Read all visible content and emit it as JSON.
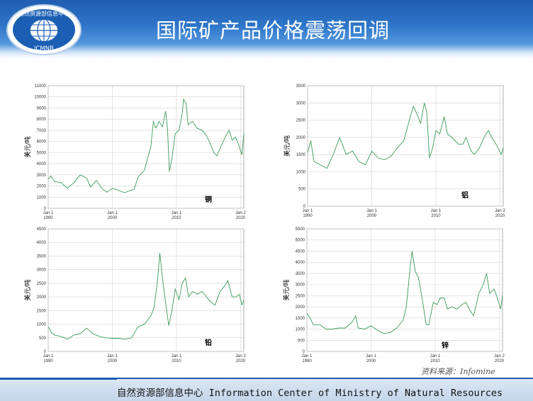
{
  "header": {
    "title": "国际矿产品价格震荡回调",
    "logo": {
      "top_text": "自然资源部信息中心",
      "bottom_text": "ICMNR"
    }
  },
  "footer": {
    "text": "自然资源部信息中心  Information Center of Ministry of Natural Resources"
  },
  "source_note": "资料来源：Infomine",
  "colors": {
    "line": "#3a9a5c",
    "grid": "#d3d3d3",
    "header_blue": "#1f5db0"
  },
  "chart_data": [
    {
      "type": "line",
      "title": "铜",
      "ylabel": "美元/吨",
      "xlabel": "",
      "ylim": [
        0,
        11000
      ],
      "yticks": [
        0,
        1000,
        2000,
        3000,
        4000,
        5000,
        6000,
        7000,
        8000,
        9000,
        10000,
        11000
      ],
      "xlim": [
        1990,
        2020.5
      ],
      "xticks": [
        {
          "x": 1990,
          "label1": "Jan 1",
          "label2": "1990"
        },
        {
          "x": 2000,
          "label1": "Jan 1",
          "label2": "2000"
        },
        {
          "x": 2010,
          "label1": "Jan 1",
          "label2": "2010"
        },
        {
          "x": 2020,
          "label1": "Jan 2",
          "label2": "2020"
        }
      ],
      "series": [
        {
          "points": [
            [
              1990,
              2600
            ],
            [
              1990.4,
              2900
            ],
            [
              1991,
              2400
            ],
            [
              1992,
              2300
            ],
            [
              1993,
              1800
            ],
            [
              1994,
              2300
            ],
            [
              1995,
              3000
            ],
            [
              1996,
              2700
            ],
            [
              1996.6,
              1900
            ],
            [
              1997.5,
              2500
            ],
            [
              1998.5,
              1700
            ],
            [
              1999.2,
              1450
            ],
            [
              2000,
              1800
            ],
            [
              2001,
              1600
            ],
            [
              2001.9,
              1400
            ],
            [
              2002.8,
              1600
            ],
            [
              2003.4,
              1700
            ],
            [
              2004,
              2800
            ],
            [
              2005,
              3400
            ],
            [
              2005.5,
              4500
            ],
            [
              2006,
              5500
            ],
            [
              2006.4,
              7800
            ],
            [
              2006.8,
              7200
            ],
            [
              2007.3,
              7800
            ],
            [
              2007.8,
              7300
            ],
            [
              2008.3,
              8700
            ],
            [
              2008.6,
              7200
            ],
            [
              2008.9,
              3300
            ],
            [
              2009.3,
              4500
            ],
            [
              2009.8,
              6700
            ],
            [
              2010.4,
              7000
            ],
            [
              2010.9,
              8500
            ],
            [
              2011.1,
              9800
            ],
            [
              2011.5,
              9400
            ],
            [
              2011.8,
              7500
            ],
            [
              2012.5,
              7800
            ],
            [
              2013.2,
              7200
            ],
            [
              2014,
              7000
            ],
            [
              2014.6,
              6600
            ],
            [
              2015.2,
              5900
            ],
            [
              2015.8,
              5000
            ],
            [
              2016.3,
              4700
            ],
            [
              2016.9,
              5500
            ],
            [
              2017.6,
              6400
            ],
            [
              2018.2,
              7000
            ],
            [
              2018.7,
              6100
            ],
            [
              2019.2,
              6400
            ],
            [
              2019.7,
              5700
            ],
            [
              2020.2,
              4800
            ],
            [
              2020.5,
              6700
            ]
          ]
        }
      ]
    },
    {
      "type": "line",
      "title": "铝",
      "ylabel": "美元/吨",
      "xlabel": "",
      "ylim": [
        0,
        3500
      ],
      "yticks": [
        0,
        500,
        1000,
        1500,
        2000,
        2500,
        3000,
        3500
      ],
      "xlim": [
        1990,
        2020.5
      ],
      "xticks": [
        {
          "x": 1990,
          "label1": "Jan 1",
          "label2": "1990"
        },
        {
          "x": 2000,
          "label1": "Jan 1",
          "label2": "2000"
        },
        {
          "x": 2010,
          "label1": "Jan 1",
          "label2": "2010"
        },
        {
          "x": 2020,
          "label1": "Jan 2",
          "label2": "2020"
        }
      ],
      "series": [
        {
          "points": [
            [
              1990,
              1550
            ],
            [
              1990.5,
              1900
            ],
            [
              1991,
              1300
            ],
            [
              1992,
              1200
            ],
            [
              1993,
              1100
            ],
            [
              1994,
              1500
            ],
            [
              1995,
              2000
            ],
            [
              1996,
              1500
            ],
            [
              1997,
              1600
            ],
            [
              1998,
              1300
            ],
            [
              1999,
              1200
            ],
            [
              2000,
              1600
            ],
            [
              2001,
              1400
            ],
            [
              2002,
              1350
            ],
            [
              2003,
              1450
            ],
            [
              2004,
              1700
            ],
            [
              2005,
              1900
            ],
            [
              2006,
              2600
            ],
            [
              2006.5,
              2900
            ],
            [
              2007,
              2700
            ],
            [
              2007.6,
              2400
            ],
            [
              2008.2,
              3000
            ],
            [
              2008.6,
              2700
            ],
            [
              2009,
              1400
            ],
            [
              2009.5,
              1700
            ],
            [
              2010,
              2200
            ],
            [
              2010.6,
              2100
            ],
            [
              2011.3,
              2600
            ],
            [
              2011.8,
              2100
            ],
            [
              2012.5,
              2000
            ],
            [
              2013.5,
              1800
            ],
            [
              2014.2,
              1800
            ],
            [
              2014.7,
              2000
            ],
            [
              2015.5,
              1600
            ],
            [
              2016,
              1500
            ],
            [
              2016.8,
              1700
            ],
            [
              2017.5,
              2000
            ],
            [
              2018.2,
              2200
            ],
            [
              2018.7,
              2000
            ],
            [
              2019.4,
              1800
            ],
            [
              2020.2,
              1500
            ],
            [
              2020.5,
              1700
            ]
          ]
        }
      ]
    },
    {
      "type": "line",
      "title": "铅",
      "ylabel": "美元/吨",
      "xlabel": "",
      "ylim": [
        0,
        4500
      ],
      "yticks": [
        0,
        500,
        1000,
        1500,
        2000,
        2500,
        3000,
        3500,
        4000,
        4500
      ],
      "xlim": [
        1990,
        2020.5
      ],
      "xticks": [
        {
          "x": 1990,
          "label1": "Jan 1",
          "label2": "1990"
        },
        {
          "x": 2000,
          "label1": "Jan 1",
          "label2": "2000"
        },
        {
          "x": 2010,
          "label1": "Jan 1",
          "label2": "2010"
        },
        {
          "x": 2020,
          "label1": "Jan 2",
          "label2": "2020"
        }
      ],
      "series": [
        {
          "points": [
            [
              1990,
              900
            ],
            [
              1990.5,
              700
            ],
            [
              1991,
              600
            ],
            [
              1992,
              550
            ],
            [
              1993,
              450
            ],
            [
              1994,
              600
            ],
            [
              1995,
              650
            ],
            [
              1996,
              850
            ],
            [
              1997,
              650
            ],
            [
              1998,
              550
            ],
            [
              1999,
              500
            ],
            [
              2000,
              480
            ],
            [
              2001,
              480
            ],
            [
              2002,
              450
            ],
            [
              2003,
              500
            ],
            [
              2004,
              900
            ],
            [
              2005,
              1000
            ],
            [
              2006,
              1300
            ],
            [
              2006.5,
              1600
            ],
            [
              2007,
              2500
            ],
            [
              2007.4,
              3600
            ],
            [
              2007.8,
              2700
            ],
            [
              2008.3,
              1800
            ],
            [
              2008.8,
              950
            ],
            [
              2009.3,
              1500
            ],
            [
              2009.8,
              2300
            ],
            [
              2010.4,
              1900
            ],
            [
              2010.9,
              2500
            ],
            [
              2011.4,
              2700
            ],
            [
              2011.9,
              2000
            ],
            [
              2012.5,
              2200
            ],
            [
              2013.3,
              2100
            ],
            [
              2014,
              2200
            ],
            [
              2014.7,
              2000
            ],
            [
              2015.4,
              1800
            ],
            [
              2016,
              1700
            ],
            [
              2016.8,
              2200
            ],
            [
              2017.5,
              2400
            ],
            [
              2018,
              2600
            ],
            [
              2018.7,
              2000
            ],
            [
              2019.3,
              2000
            ],
            [
              2019.8,
              2100
            ],
            [
              2020.2,
              1700
            ],
            [
              2020.5,
              1900
            ]
          ]
        }
      ]
    },
    {
      "type": "line",
      "title": "锌",
      "ylabel": "美元/吨",
      "xlabel": "",
      "ylim": [
        0,
        5500
      ],
      "yticks": [
        0,
        500,
        1000,
        1500,
        2000,
        2500,
        3000,
        3500,
        4000,
        4500,
        5000,
        5500
      ],
      "xlim": [
        1990,
        2020.5
      ],
      "xticks": [
        {
          "x": 1990,
          "label1": "Jan 1",
          "label2": "1990"
        },
        {
          "x": 2000,
          "label1": "Jan 1",
          "label2": "2000"
        },
        {
          "x": 2010,
          "label1": "Jan 1",
          "label2": "2010"
        },
        {
          "x": 2020,
          "label1": "Jan 2",
          "label2": "2020"
        }
      ],
      "series": [
        {
          "points": [
            [
              1990,
              1700
            ],
            [
              1990.5,
              1500
            ],
            [
              1991,
              1200
            ],
            [
              1992,
              1200
            ],
            [
              1993,
              1000
            ],
            [
              1994,
              1000
            ],
            [
              1995,
              1050
            ],
            [
              1996,
              1050
            ],
            [
              1997,
              1300
            ],
            [
              1997.6,
              1600
            ],
            [
              1998,
              1050
            ],
            [
              1999,
              1000
            ],
            [
              2000,
              1150
            ],
            [
              2001,
              950
            ],
            [
              2002,
              800
            ],
            [
              2003,
              850
            ],
            [
              2004,
              1050
            ],
            [
              2005,
              1400
            ],
            [
              2005.5,
              2000
            ],
            [
              2006,
              3500
            ],
            [
              2006.4,
              4500
            ],
            [
              2006.9,
              3600
            ],
            [
              2007.4,
              3300
            ],
            [
              2008,
              2300
            ],
            [
              2008.6,
              1200
            ],
            [
              2009,
              1200
            ],
            [
              2009.7,
              2200
            ],
            [
              2010.3,
              2100
            ],
            [
              2010.8,
              2400
            ],
            [
              2011.4,
              2400
            ],
            [
              2011.9,
              1900
            ],
            [
              2012.6,
              2000
            ],
            [
              2013.4,
              1900
            ],
            [
              2014.2,
              2100
            ],
            [
              2014.8,
              2200
            ],
            [
              2015.5,
              1800
            ],
            [
              2016,
              1600
            ],
            [
              2016.8,
              2600
            ],
            [
              2017.5,
              3000
            ],
            [
              2018,
              3500
            ],
            [
              2018.5,
              2600
            ],
            [
              2019.2,
              2800
            ],
            [
              2019.8,
              2300
            ],
            [
              2020.2,
              1900
            ],
            [
              2020.5,
              2500
            ]
          ]
        }
      ]
    }
  ]
}
